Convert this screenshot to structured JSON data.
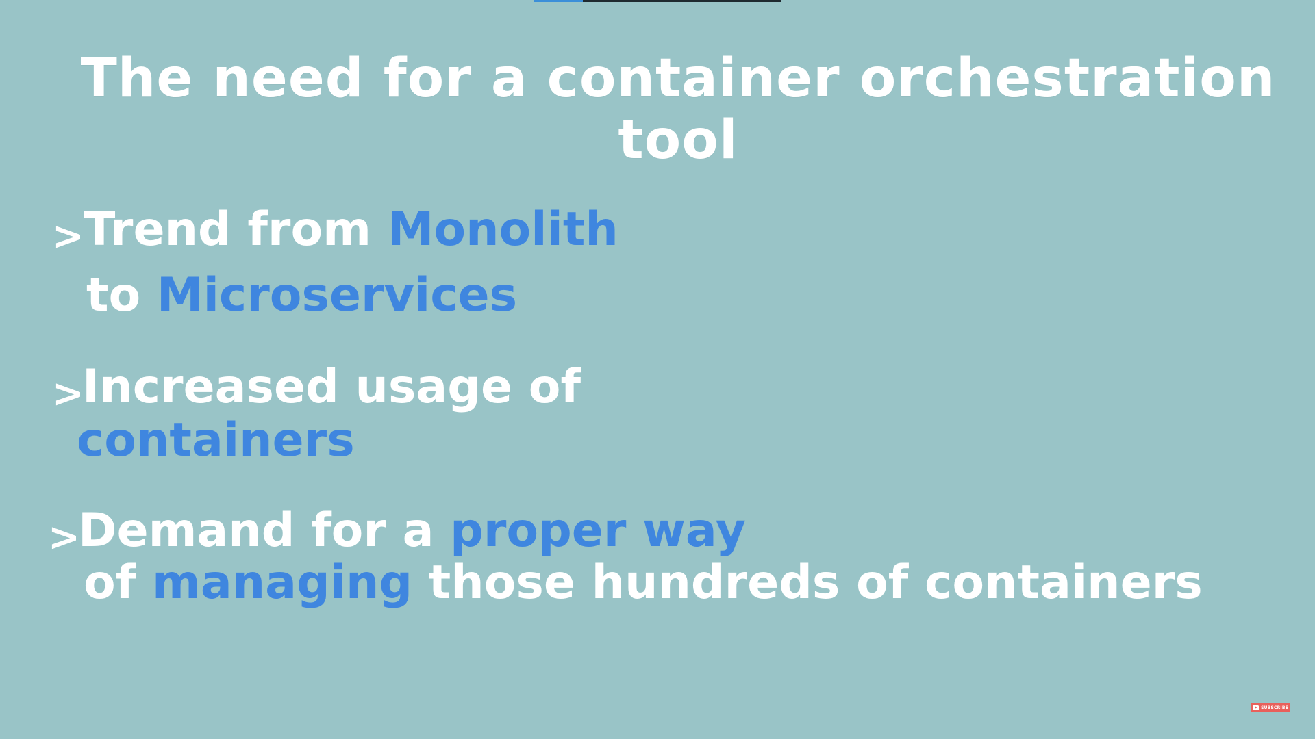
{
  "video": {
    "progress_fraction": 0.2,
    "colors": {
      "background": "#99c4c7",
      "text": "#ffffff",
      "highlight": "#3f86df",
      "progress_fill": "#3b8fd9",
      "progress_track": "#1f2a30",
      "subscribe_bg": "#e8605b"
    }
  },
  "slide": {
    "title": "The need for a container orchestration tool",
    "bullet_icon": "chevron-right-icon",
    "bullet_glyph": ">",
    "bullets": [
      {
        "line1": {
          "pre": "Trend from ",
          "hl": "Monolith"
        },
        "line2": {
          "pre": "to ",
          "hl": "Microservices"
        }
      },
      {
        "line1": {
          "pre": "Increased usage of"
        },
        "line2": {
          "hl": "containers"
        }
      },
      {
        "line1": {
          "pre": "Demand for a ",
          "hl": "proper way"
        },
        "line2": {
          "pre": "of ",
          "hl": "managing",
          "post": " those hundreds of containers"
        }
      }
    ]
  },
  "subscribe": {
    "label": "SUBSCRIBE",
    "icon": "youtube-icon"
  }
}
